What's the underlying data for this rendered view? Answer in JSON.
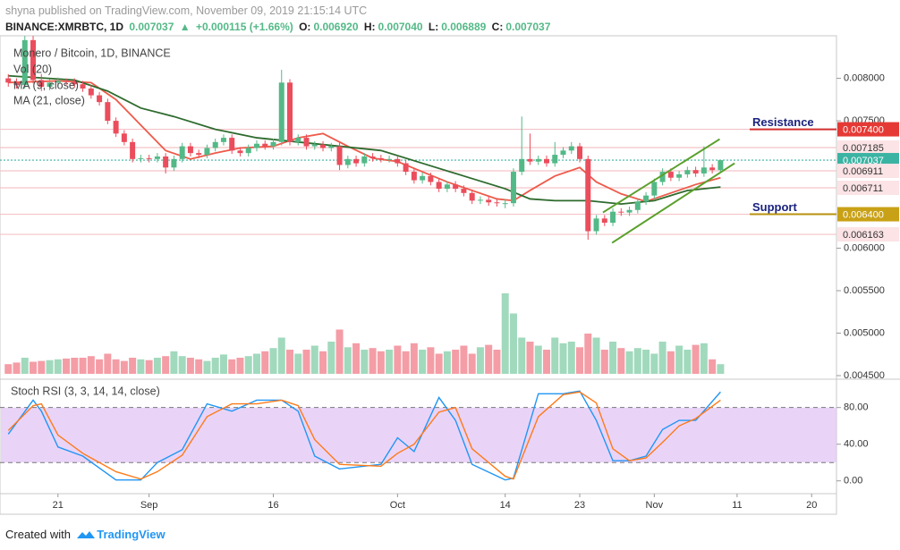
{
  "header": {
    "byline": "shyna published on TradingView.com, November 09, 2019 21:15:14 UTC",
    "symbol": "BINANCE:XMRBTC, 1D",
    "last": "0.007037",
    "arrow": "▲",
    "change": "+0.000115 (+1.66%)",
    "o_label": "O:",
    "o": "0.006920",
    "h_label": "H:",
    "h": "0.007040",
    "l_label": "L:",
    "l": "0.006889",
    "c_label": "C:",
    "c": "0.007037"
  },
  "chart_data": [
    {
      "type": "candlestick",
      "title": "Monero / Bitcoin, 1D, BINANCE",
      "up_color": "#53b987",
      "down_color": "#eb4d5c",
      "xlim": [
        -1,
        100
      ],
      "ylim": [
        0.0045,
        0.00848
      ],
      "yticks": [
        {
          "value": 0.008,
          "label": "0.008000"
        },
        {
          "value": 0.0075,
          "label": "0.007500"
        },
        {
          "value": 0.006,
          "label": "0.006000"
        },
        {
          "value": 0.0055,
          "label": "0.005500"
        },
        {
          "value": 0.005,
          "label": "0.005000"
        },
        {
          "value": 0.0045,
          "label": "0.004500"
        }
      ],
      "candles": [
        [
          0.008,
          0.00805,
          0.0079,
          0.00795
        ],
        [
          0.00795,
          0.008,
          0.00788,
          0.00792
        ],
        [
          0.00792,
          0.0085,
          0.00788,
          0.00845
        ],
        [
          0.00845,
          0.0085,
          0.00794,
          0.00798
        ],
        [
          0.00798,
          0.00805,
          0.00785,
          0.0079
        ],
        [
          0.0079,
          0.00799,
          0.00786,
          0.00795
        ],
        [
          0.00795,
          0.00801,
          0.00791,
          0.00797
        ],
        [
          0.00797,
          0.008,
          0.00792,
          0.00796
        ],
        [
          0.00796,
          0.008,
          0.00789,
          0.00793
        ],
        [
          0.00793,
          0.00797,
          0.00784,
          0.00788
        ],
        [
          0.00788,
          0.00792,
          0.00776,
          0.0078
        ],
        [
          0.0078,
          0.00784,
          0.00768,
          0.00772
        ],
        [
          0.00772,
          0.00776,
          0.00746,
          0.0075
        ],
        [
          0.0075,
          0.00754,
          0.00731,
          0.00735
        ],
        [
          0.00735,
          0.00739,
          0.00721,
          0.00725
        ],
        [
          0.00725,
          0.00729,
          0.00701,
          0.00705
        ],
        [
          0.00705,
          0.0071,
          0.00701,
          0.00706
        ],
        [
          0.00706,
          0.0071,
          0.00701,
          0.00705
        ],
        [
          0.00705,
          0.00712,
          0.00701,
          0.00708
        ],
        [
          0.00708,
          0.00712,
          0.00688,
          0.00695
        ],
        [
          0.00695,
          0.00709,
          0.00691,
          0.00705
        ],
        [
          0.00705,
          0.00724,
          0.00701,
          0.0072
        ],
        [
          0.0072,
          0.00724,
          0.00708,
          0.00712
        ],
        [
          0.00712,
          0.00716,
          0.00706,
          0.0071
        ],
        [
          0.0071,
          0.00722,
          0.00706,
          0.00718
        ],
        [
          0.00718,
          0.00729,
          0.00714,
          0.00725
        ],
        [
          0.00725,
          0.00734,
          0.00721,
          0.0073
        ],
        [
          0.0073,
          0.00734,
          0.00711,
          0.00715
        ],
        [
          0.00715,
          0.00719,
          0.00708,
          0.00712
        ],
        [
          0.00712,
          0.00722,
          0.00708,
          0.00718
        ],
        [
          0.00718,
          0.00727,
          0.00714,
          0.00723
        ],
        [
          0.00723,
          0.00727,
          0.00716,
          0.0072
        ],
        [
          0.0072,
          0.00729,
          0.00716,
          0.00725
        ],
        [
          0.00725,
          0.0081,
          0.00721,
          0.00795
        ],
        [
          0.00795,
          0.00799,
          0.00721,
          0.00725
        ],
        [
          0.00725,
          0.00734,
          0.00721,
          0.0073
        ],
        [
          0.0073,
          0.00734,
          0.00716,
          0.0072
        ],
        [
          0.0072,
          0.00726,
          0.00716,
          0.00722
        ],
        [
          0.00722,
          0.00726,
          0.00714,
          0.00718
        ],
        [
          0.00718,
          0.00724,
          0.00714,
          0.0072
        ],
        [
          0.0072,
          0.00724,
          0.00692,
          0.00698
        ],
        [
          0.00698,
          0.00709,
          0.00694,
          0.00705
        ],
        [
          0.00705,
          0.00709,
          0.00696,
          0.007
        ],
        [
          0.007,
          0.00712,
          0.00696,
          0.00708
        ],
        [
          0.00708,
          0.00712,
          0.00702,
          0.00706
        ],
        [
          0.00706,
          0.0071,
          0.00701,
          0.00705
        ],
        [
          0.00705,
          0.00709,
          0.00701,
          0.00705
        ],
        [
          0.00705,
          0.00709,
          0.00696,
          0.007
        ],
        [
          0.007,
          0.00704,
          0.00686,
          0.0069
        ],
        [
          0.0069,
          0.00694,
          0.00676,
          0.0068
        ],
        [
          0.0068,
          0.00689,
          0.00676,
          0.00685
        ],
        [
          0.00685,
          0.00689,
          0.00674,
          0.00678
        ],
        [
          0.00678,
          0.00682,
          0.00666,
          0.0067
        ],
        [
          0.0067,
          0.00679,
          0.00666,
          0.00675
        ],
        [
          0.00675,
          0.00679,
          0.00666,
          0.0067
        ],
        [
          0.0067,
          0.00674,
          0.00661,
          0.00665
        ],
        [
          0.00665,
          0.00669,
          0.00652,
          0.00656
        ],
        [
          0.00656,
          0.00661,
          0.00652,
          0.00657
        ],
        [
          0.00657,
          0.00661,
          0.0065,
          0.00654
        ],
        [
          0.00654,
          0.00658,
          0.00649,
          0.00653
        ],
        [
          0.00653,
          0.00658,
          0.00647,
          0.00653
        ],
        [
          0.00653,
          0.00694,
          0.00649,
          0.0069
        ],
        [
          0.0069,
          0.00755,
          0.00686,
          0.00705
        ],
        [
          0.00705,
          0.00735,
          0.00698,
          0.00702
        ],
        [
          0.00702,
          0.00709,
          0.00698,
          0.00705
        ],
        [
          0.00705,
          0.00709,
          0.00696,
          0.007
        ],
        [
          0.007,
          0.00725,
          0.00696,
          0.0071
        ],
        [
          0.0071,
          0.00719,
          0.00706,
          0.00715
        ],
        [
          0.00715,
          0.00725,
          0.00711,
          0.0072
        ],
        [
          0.0072,
          0.00724,
          0.00701,
          0.00705
        ],
        [
          0.00705,
          0.00709,
          0.0061,
          0.0062
        ],
        [
          0.0062,
          0.00639,
          0.00616,
          0.00635
        ],
        [
          0.00635,
          0.00639,
          0.00626,
          0.0063
        ],
        [
          0.0063,
          0.00647,
          0.00626,
          0.00643
        ],
        [
          0.00643,
          0.00647,
          0.00638,
          0.00642
        ],
        [
          0.00642,
          0.00649,
          0.00638,
          0.00645
        ],
        [
          0.00645,
          0.00659,
          0.00641,
          0.00655
        ],
        [
          0.00655,
          0.00666,
          0.00651,
          0.00662
        ],
        [
          0.00662,
          0.00682,
          0.00658,
          0.00678
        ],
        [
          0.00678,
          0.00694,
          0.00674,
          0.0069
        ],
        [
          0.0069,
          0.00694,
          0.00679,
          0.00683
        ],
        [
          0.00683,
          0.00691,
          0.00679,
          0.00687
        ],
        [
          0.00687,
          0.00696,
          0.00683,
          0.00692
        ],
        [
          0.00692,
          0.00696,
          0.00684,
          0.00688
        ],
        [
          0.00688,
          0.0072,
          0.00684,
          0.00695
        ],
        [
          0.00695,
          0.00699,
          0.00688,
          0.00692
        ],
        [
          0.00692,
          0.00704,
          0.006889,
          0.007037
        ]
      ],
      "volume": {
        "name": "Vol (20)",
        "ylim": [
          0,
          100
        ],
        "values": [
          12,
          14,
          20,
          15,
          16,
          17,
          18,
          19,
          20,
          20,
          22,
          18,
          25,
          18,
          16,
          20,
          18,
          17,
          20,
          22,
          28,
          22,
          20,
          18,
          16,
          20,
          24,
          18,
          20,
          22,
          25,
          28,
          32,
          45,
          30,
          25,
          30,
          35,
          28,
          40,
          55,
          33,
          38,
          30,
          32,
          28,
          30,
          35,
          28,
          38,
          30,
          33,
          25,
          28,
          30,
          35,
          25,
          33,
          36,
          30,
          100,
          75,
          45,
          40,
          35,
          30,
          45,
          38,
          40,
          33,
          50,
          45,
          30,
          40,
          32,
          28,
          32,
          30,
          25,
          40,
          28,
          35,
          30,
          36,
          38,
          18,
          12
        ]
      },
      "series": [
        {
          "name": "MA (9, close)",
          "color": "#ee5a4a",
          "x": [
            0,
            6,
            10,
            13,
            16,
            19,
            22,
            25,
            28,
            32,
            35,
            38,
            41,
            44,
            47,
            50,
            53,
            56,
            59,
            61,
            63,
            66,
            69,
            71,
            74,
            77,
            80,
            83,
            86
          ],
          "values": [
            0.00795,
            0.00797,
            0.00795,
            0.00775,
            0.00745,
            0.00715,
            0.00705,
            0.00712,
            0.00718,
            0.0072,
            0.0073,
            0.00735,
            0.0072,
            0.00706,
            0.00702,
            0.0069,
            0.00678,
            0.00668,
            0.00658,
            0.00656,
            0.00668,
            0.00685,
            0.00695,
            0.00678,
            0.00664,
            0.00655,
            0.00665,
            0.00675,
            0.00683
          ]
        },
        {
          "name": "MA (21, close)",
          "color": "#2e6b2e",
          "x": [
            0,
            8,
            12,
            16,
            20,
            25,
            30,
            35,
            40,
            45,
            50,
            55,
            60,
            63,
            66,
            70,
            74,
            78,
            82,
            86
          ],
          "values": [
            0.00803,
            0.00798,
            0.00785,
            0.00765,
            0.00755,
            0.0074,
            0.0073,
            0.00725,
            0.0072,
            0.00715,
            0.007,
            0.00685,
            0.0067,
            0.00658,
            0.00656,
            0.00656,
            0.00652,
            0.00656,
            0.00668,
            0.00672
          ]
        }
      ],
      "trendlines": [
        {
          "color": "#5aa02c",
          "x": [
            72.9,
            87.7
          ],
          "values": [
            0.006063,
            0.007
          ]
        },
        {
          "color": "#5aa02c",
          "x": [
            71.8,
            85.9
          ],
          "values": [
            0.006421,
            0.007284
          ]
        }
      ],
      "levels": [
        {
          "value": 0.0074,
          "label": "0.007400",
          "color": "#e53935",
          "text_color": "#ffffff",
          "line_color": "#f4c3c8"
        },
        {
          "value": 0.007185,
          "label": "0.007185",
          "color": "#fbe3e6",
          "text_color": "#333333",
          "line_color": "#f4c3c8"
        },
        {
          "value": 0.007037,
          "label": "0.007037",
          "color": "#3bb3a3",
          "text_color": "#ffffff",
          "line_color": "#3bb3a3"
        },
        {
          "value": 0.006911,
          "label": "0.006911",
          "color": "#fbe3e6",
          "text_color": "#333333",
          "line_color": "#f4c3c8"
        },
        {
          "value": 0.006711,
          "label": "0.006711",
          "color": "#fbe3e6",
          "text_color": "#333333",
          "line_color": "#f4c3c8"
        },
        {
          "value": 0.0064,
          "label": "0.006400",
          "color": "#c9a116",
          "text_color": "#ffffff",
          "line_color": "#f4c3c8"
        },
        {
          "value": 0.006163,
          "label": "0.006163",
          "color": "#fbe3e6",
          "text_color": "#333333",
          "line_color": "#f4c3c8"
        }
      ],
      "annotations": [
        {
          "text": "Resistance",
          "value": 0.0074,
          "color": "#d32f2f"
        },
        {
          "text": "Support",
          "value": 0.0064,
          "color": "#b8920f"
        }
      ]
    },
    {
      "type": "line",
      "title": "Stoch RSI (3, 3, 14, 14, close)",
      "xlim": [
        -1,
        100
      ],
      "ylim": [
        -12,
        107
      ],
      "xticks": [
        {
          "value": 6,
          "label": "21"
        },
        {
          "value": 17,
          "label": "Sep"
        },
        {
          "value": 32,
          "label": "16"
        },
        {
          "value": 47,
          "label": "Oct"
        },
        {
          "value": 60,
          "label": "14"
        },
        {
          "value": 69,
          "label": "23"
        },
        {
          "value": 78,
          "label": "Nov"
        },
        {
          "value": 88,
          "label": "11"
        },
        {
          "value": 97,
          "label": "20"
        }
      ],
      "yticks": [
        {
          "value": 80,
          "label": "80.00"
        },
        {
          "value": 40,
          "label": "40.00"
        },
        {
          "value": 0,
          "label": "0.00"
        }
      ],
      "band": [
        20,
        80
      ],
      "band_color": "#e4c9f6",
      "x": [
        0,
        3,
        4,
        6,
        9,
        13,
        16,
        18,
        21,
        24,
        27,
        30,
        33,
        35,
        37,
        40,
        45,
        47,
        49,
        52,
        54,
        56,
        60,
        61,
        64,
        67,
        69,
        71,
        73,
        75,
        77,
        79,
        81,
        83,
        86
      ],
      "series": [
        {
          "color": "#2196f3",
          "values": [
            51,
            88,
            76,
            37,
            27,
            1,
            1,
            20,
            34,
            84,
            76,
            88,
            88,
            76,
            27,
            13,
            18,
            47,
            32,
            91,
            66,
            18,
            1,
            3,
            95,
            95,
            98,
            66,
            22,
            22,
            27,
            56,
            66,
            66,
            97
          ]
        },
        {
          "color": "#ff7a1a",
          "values": [
            55,
            82,
            84,
            50,
            30,
            10,
            2,
            10,
            28,
            70,
            84,
            84,
            88,
            82,
            45,
            18,
            16,
            30,
            40,
            75,
            80,
            35,
            5,
            2,
            70,
            94,
            97,
            85,
            35,
            22,
            25,
            42,
            60,
            68,
            88
          ]
        }
      ]
    }
  ],
  "footer": {
    "prefix": "Created with",
    "brand": "TradingView"
  }
}
